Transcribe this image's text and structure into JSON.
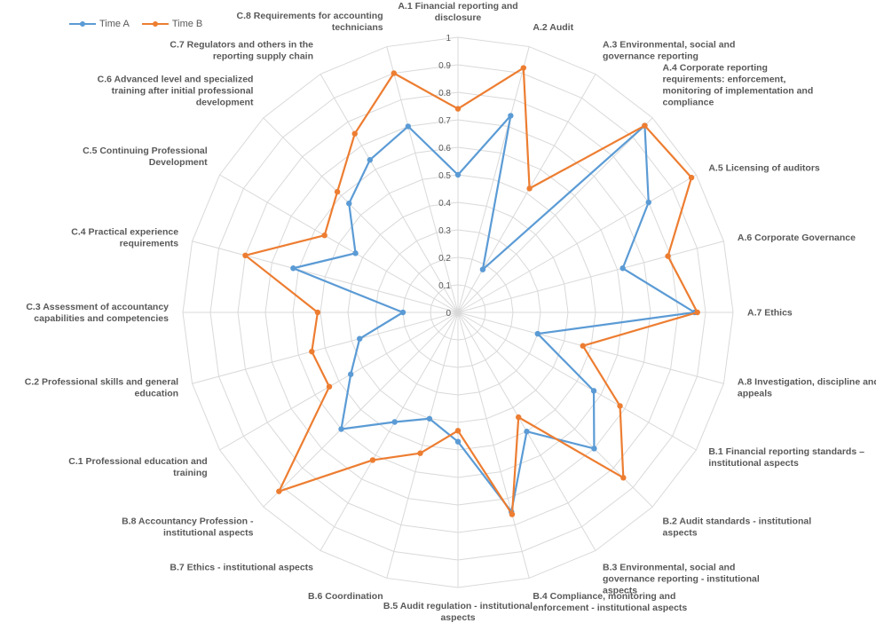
{
  "chart_data": {
    "type": "radar",
    "categories": [
      "A.1 Financial reporting and disclosure",
      "A.2 Audit",
      "A.3 Environmental, social and governance reporting",
      "A.4 Corporate reporting requirements: enforcement, monitoring of implementation and compliance",
      "A.5 Licensing of auditors",
      "A.6 Corporate Governance",
      "A.7 Ethics",
      "A.8 Investigation, discipline and appeals",
      "B.1 Financial reporting standards – institutional aspects",
      "B.2 Audit standards - institutional aspects",
      "B.3 Environmental, social  and governance reporting - institutional aspects",
      "B.4 Compliance, monitoring and enforcement - institutional aspects",
      "B.5 Audit regulation - institutional aspects",
      "B.6 Coordination",
      "B.7 Ethics - institutional aspects",
      "B.8 Accountancy Profession - institutional aspects",
      "C.1 Professional education and training",
      "C.2 Professional skills and general education",
      "C.3 Assessment of accountancy capabilities and competencies",
      "C.4 Practical experience requirements",
      "C.5 Continuing Professional Development",
      "C.6 Advanced level and specialized training after initial professional development",
      "C.7 Regulators and others in the reporting supply chain",
      "C.8 Requirements for accounting technicians"
    ],
    "series": [
      {
        "name": "Time A",
        "color": "#5B9BD5",
        "values": [
          0.5,
          0.74,
          0.18,
          0.96,
          0.8,
          0.62,
          0.86,
          0.3,
          0.57,
          0.7,
          0.5,
          0.75,
          0.47,
          0.4,
          0.46,
          0.6,
          0.45,
          0.37,
          0.2,
          0.62,
          0.43,
          0.56,
          0.64,
          0.7
        ]
      },
      {
        "name": "Time B",
        "color": "#ED7D31",
        "values": [
          0.74,
          0.92,
          0.52,
          0.96,
          0.98,
          0.79,
          0.87,
          0.47,
          0.68,
          0.85,
          0.44,
          0.76,
          0.43,
          0.53,
          0.62,
          0.92,
          0.54,
          0.55,
          0.51,
          0.8,
          0.56,
          0.62,
          0.75,
          0.9
        ]
      }
    ],
    "ylim": [
      0,
      1
    ],
    "ticks": [
      "0",
      "0.1",
      "0.2",
      "0.3",
      "0.4",
      "0.5",
      "0.6",
      "0.7",
      "0.8",
      "0.9",
      "1"
    ],
    "grid": true,
    "legend_position": "top-left"
  }
}
